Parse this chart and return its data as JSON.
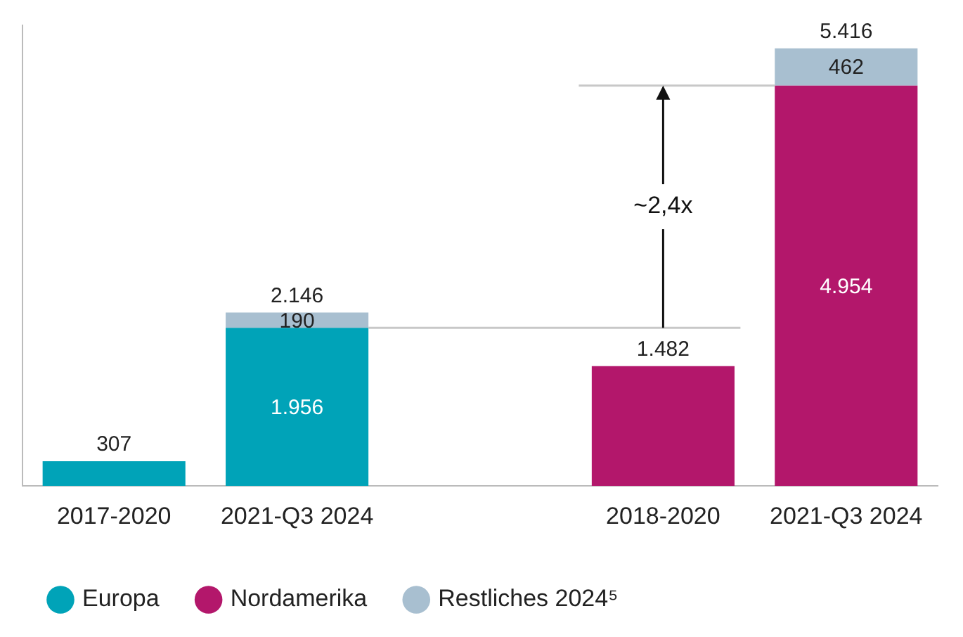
{
  "chart_data": {
    "type": "bar",
    "stacked": true,
    "categories": [
      "2017-2020",
      "2021-Q3 2024",
      null,
      "2018-2020",
      "2021-Q3 2024"
    ],
    "series": [
      {
        "name": "Europa",
        "color": "#00a3b8",
        "values": [
          307,
          1956,
          null,
          null,
          null
        ],
        "value_labels": [
          null,
          "1.956",
          null,
          null,
          null
        ]
      },
      {
        "name": "Nordamerika",
        "color": "#b3176b",
        "values": [
          null,
          null,
          null,
          1482,
          4954
        ],
        "value_labels": [
          null,
          null,
          null,
          null,
          "4.954"
        ]
      },
      {
        "name": "Restliches 2024⁵",
        "color": "#a8bfd0",
        "values": [
          null,
          190,
          null,
          null,
          462
        ],
        "value_labels": [
          null,
          "190",
          null,
          null,
          "462"
        ]
      }
    ],
    "totals": [
      "307",
      "2.146",
      null,
      "1.482",
      "5.416"
    ],
    "ylim": [
      0,
      5700
    ],
    "tick_labels": "x",
    "grid": false,
    "legend": "bottom left",
    "ref_lines": [
      {
        "axis": "y",
        "value": 1956,
        "color": "#c8c8c8"
      },
      {
        "axis": "y",
        "value": 4954,
        "color": "#c8c8c8"
      }
    ],
    "annotations": [
      "~2,4x"
    ]
  }
}
